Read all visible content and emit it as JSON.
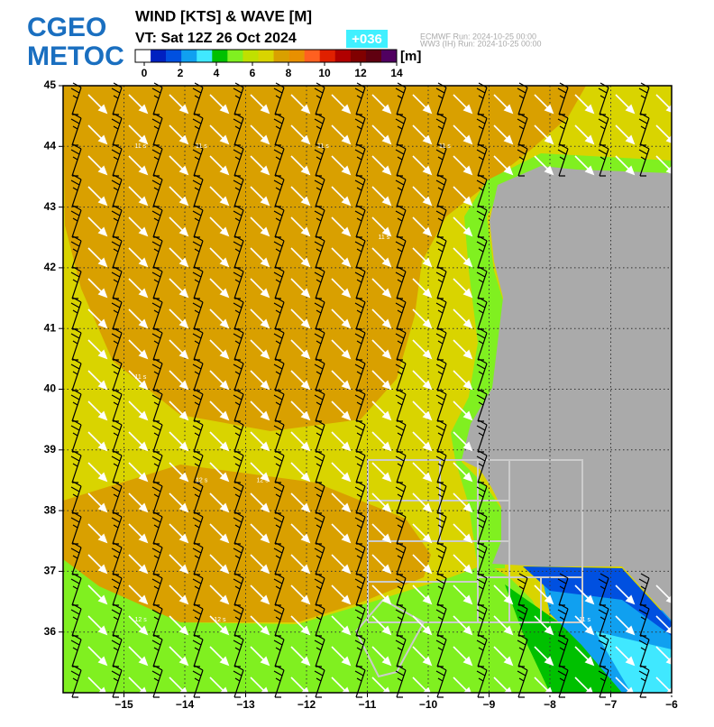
{
  "logo": {
    "line1": "CGEO",
    "line2": "METOC"
  },
  "chart_data": {
    "type": "map",
    "title": "WIND [KTS] & WAVE [M]",
    "valid_time": "VT:  Sat 12Z 26 Oct 2024",
    "lead": "+036",
    "runs": [
      "ECMWF    Run: 2024-10-25 00:00",
      "WW3 (IH) Run: 2024-10-25 00:00"
    ],
    "colorbar": {
      "unit": "[m]",
      "lim": [
        -0.5,
        14
      ],
      "ticks": [
        0,
        2,
        4,
        6,
        8,
        10,
        12,
        14
      ],
      "colors": [
        "#ffffff",
        "#0020c0",
        "#0050e0",
        "#10a0f0",
        "#40e8ff",
        "#00c000",
        "#80f020",
        "#c0e000",
        "#d9d400",
        "#d9a000",
        "#e89000",
        "#ff6020",
        "#e02000",
        "#b00000",
        "#800000",
        "#600010",
        "#500060"
      ]
    },
    "xlim": [
      -16,
      -6
    ],
    "ylim": [
      35,
      45
    ],
    "xticks": [
      {
        "value": -15,
        "label": "−15"
      },
      {
        "value": -14,
        "label": "−14"
      },
      {
        "value": -13,
        "label": "−13"
      },
      {
        "value": -12,
        "label": "−12"
      },
      {
        "value": -11,
        "label": "−11"
      },
      {
        "value": -10,
        "label": "−10"
      },
      {
        "value": -9,
        "label": "−9"
      },
      {
        "value": -8,
        "label": "−8"
      },
      {
        "value": -7,
        "label": "−7"
      },
      {
        "value": -6,
        "label": "−6"
      }
    ],
    "yticks": [
      36,
      37,
      38,
      39,
      40,
      41,
      42,
      43,
      44,
      45
    ],
    "grid": true,
    "period_labels": [
      "11 s",
      "11 s",
      "11 s",
      "11 s",
      "12 s",
      "12 s",
      "11 s",
      "11 s",
      "12 s",
      "12 s",
      "11 s"
    ]
  }
}
